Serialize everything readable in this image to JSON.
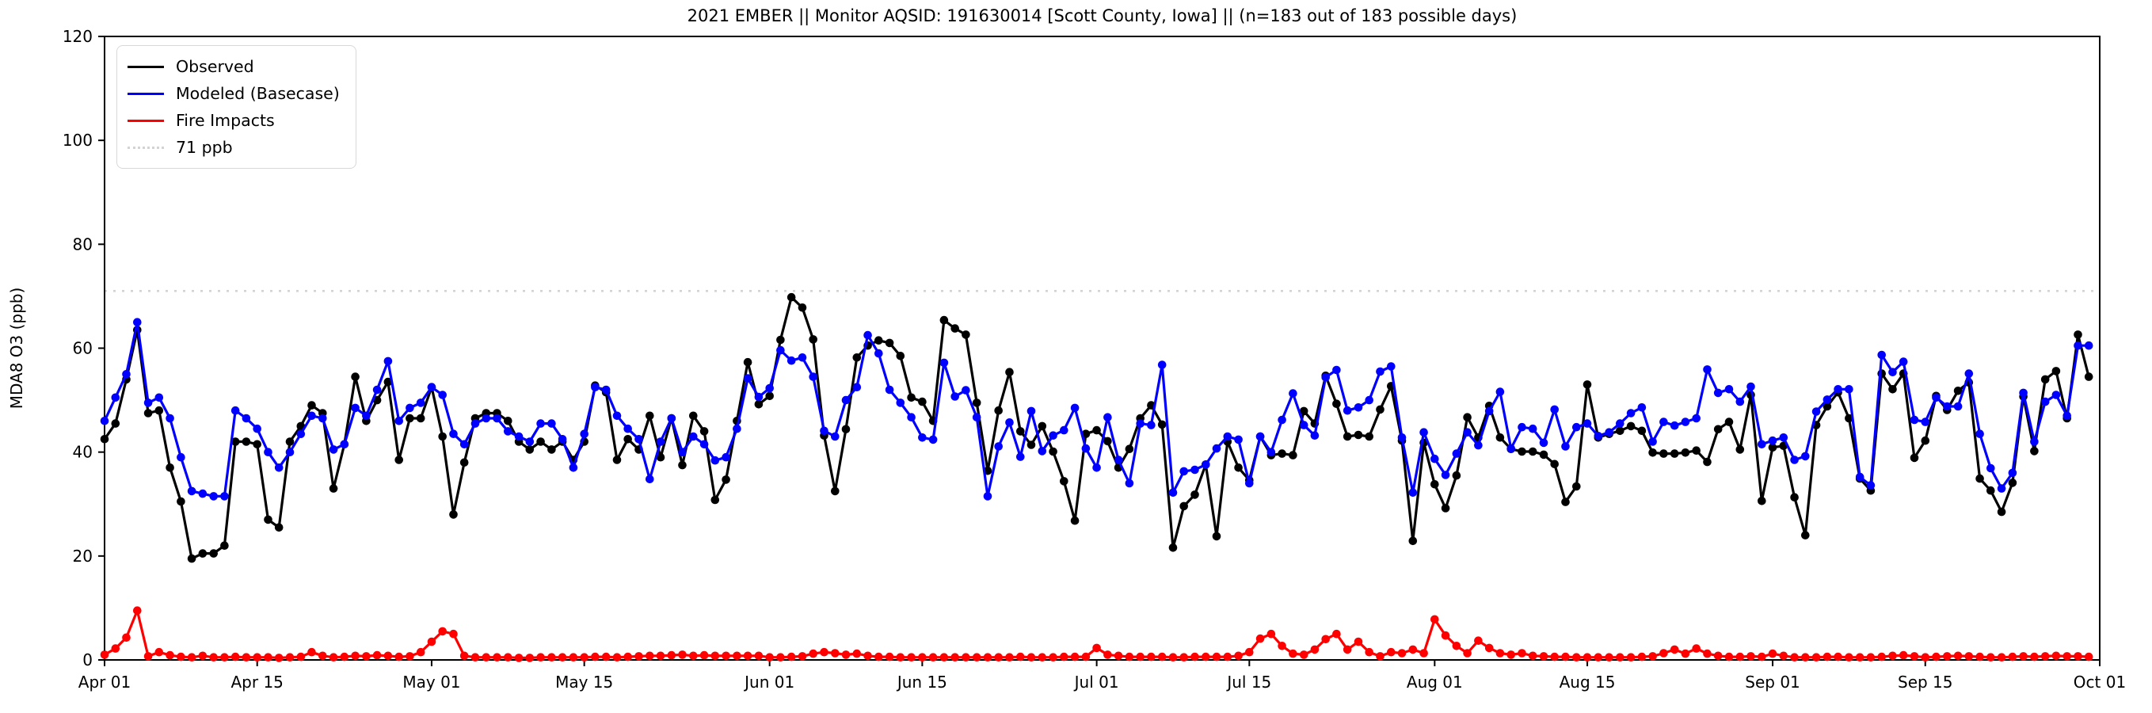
{
  "title": "2021 EMBER || Monitor AQSID: 191630014 [Scott County, Iowa] || (n=183 out of 183 possible days)",
  "chart_data": {
    "type": "line",
    "title": "2021 EMBER || Monitor AQSID: 191630014 [Scott County, Iowa] || (n=183 out of 183 possible days)",
    "xlabel": "",
    "ylabel": "MDA8 O3 (ppb)",
    "ylim": [
      0,
      120
    ],
    "y_ticks": [
      0,
      20,
      40,
      60,
      80,
      100,
      120
    ],
    "x_start_date": "2021-04-01",
    "n_days": 183,
    "x_ticks": [
      {
        "label": "Apr 01",
        "day": 0
      },
      {
        "label": "Apr 15",
        "day": 14
      },
      {
        "label": "May 01",
        "day": 30
      },
      {
        "label": "May 15",
        "day": 44
      },
      {
        "label": "Jun 01",
        "day": 61
      },
      {
        "label": "Jun 15",
        "day": 75
      },
      {
        "label": "Jul 01",
        "day": 91
      },
      {
        "label": "Jul 15",
        "day": 105
      },
      {
        "label": "Aug 01",
        "day": 122
      },
      {
        "label": "Aug 15",
        "day": 136
      },
      {
        "label": "Sep 01",
        "day": 153
      },
      {
        "label": "Sep 15",
        "day": 167
      },
      {
        "label": "Oct 01",
        "day": 183
      }
    ],
    "threshold": {
      "value": 71,
      "label": "71 ppb",
      "color": "#d3d3d3",
      "style": "dotted"
    },
    "grid": false,
    "legend_position": "top-left",
    "marker": "circle",
    "series": [
      {
        "name": "Observed",
        "color": "#000000",
        "values": [
          42.5,
          45.5,
          54,
          63.5,
          47.5,
          48,
          37,
          30.5,
          19.5,
          20.5,
          20.5,
          22,
          42,
          42,
          41.5,
          27,
          25.5,
          42,
          45,
          49,
          47.5,
          33,
          41.5,
          54.5,
          46,
          50,
          53.5,
          38.5,
          46.5,
          46.5,
          52.5,
          43,
          28,
          38,
          46.5,
          47.5,
          47.5,
          46,
          42,
          40.5,
          42,
          40.5,
          42,
          38.5,
          42,
          52.8,
          51.5,
          38.5,
          42.5,
          40.5,
          47,
          39,
          46.5,
          37.5,
          47,
          44,
          30.8,
          34.7,
          46,
          57.3,
          49.2,
          50.8,
          61.6,
          69.8,
          67.8,
          61.7,
          43.2,
          32.5,
          44.4,
          58.2,
          60.5,
          61.5,
          61,
          58.5,
          50.5,
          49.7,
          46,
          65.4,
          63.8,
          62.6,
          49.5,
          36.4,
          48,
          55.4,
          44,
          41.4,
          45,
          40.1,
          34.4,
          26.8,
          43.5,
          44.2,
          42.1,
          37,
          40.6,
          46.5,
          49,
          45.3,
          21.6,
          29.6,
          31.8,
          37.6,
          23.8,
          42,
          37,
          34.6,
          43,
          39.4,
          39.7,
          39.4,
          47.9,
          45.5,
          54.7,
          49.3,
          43,
          43.3,
          43,
          48.2,
          52.7,
          42.2,
          22.9,
          41.8,
          33.8,
          29.2,
          35.5,
          46.7,
          42.8,
          48.9,
          42.8,
          40.6,
          40.1,
          40.1,
          39.5,
          37.7,
          30.4,
          33.4,
          53,
          42.8,
          43.5,
          44.1,
          45,
          44.1,
          39.9,
          39.7,
          39.7,
          39.9,
          40.3,
          38.1,
          44.4,
          45.8,
          40.5,
          51,
          30.6,
          40.9,
          41.2,
          31.3,
          24,
          45.2,
          48.8,
          51.5,
          46.5,
          34.9,
          32.6,
          55.1,
          52.1,
          55.1,
          38.9,
          42.2,
          50.8,
          48.1,
          51.8,
          53.4,
          34.9,
          32.6,
          28.5,
          34.1,
          50.7,
          40.2,
          54,
          55.6,
          46.5,
          62.6,
          54.5
        ]
      },
      {
        "name": "Modeled (Basecase)",
        "color": "#0000ff",
        "values": [
          46,
          50.5,
          55,
          65,
          49.5,
          50.5,
          46.5,
          39,
          32.5,
          32,
          31.5,
          31.5,
          48,
          46.5,
          44.5,
          40,
          37,
          40,
          43.5,
          47,
          46.5,
          40.5,
          41.5,
          48.5,
          47,
          52,
          57.5,
          46,
          48.5,
          49.5,
          52.5,
          51,
          43.5,
          41.5,
          45.5,
          46.5,
          46.5,
          44,
          43,
          42,
          45.5,
          45.5,
          42.5,
          37,
          43.5,
          52.5,
          52,
          47,
          44.5,
          42.5,
          34.8,
          42,
          46.5,
          40,
          43,
          41.5,
          38.4,
          39,
          44.5,
          54.2,
          50.6,
          52.3,
          59.6,
          57.6,
          58.2,
          54.5,
          44.1,
          43,
          50,
          52.5,
          62.5,
          59,
          52,
          49.5,
          46.7,
          42.8,
          42.4,
          57.2,
          50.7,
          51.9,
          46.7,
          31.5,
          41.1,
          45.7,
          39.1,
          47.9,
          40.2,
          43.2,
          44.2,
          48.5,
          40.7,
          37,
          46.7,
          38.5,
          34,
          45.5,
          45.2,
          56.8,
          32.2,
          36.3,
          36.6,
          37.6,
          40.7,
          43,
          42.4,
          34,
          43,
          40,
          46.2,
          51.3,
          45.2,
          43.2,
          54.4,
          55.8,
          48,
          48.6,
          50,
          55.5,
          56.5,
          42.8,
          32.2,
          43.8,
          38.7,
          35.6,
          39.7,
          43.8,
          41.3,
          47.9,
          51.6,
          40.7,
          44.8,
          44.5,
          41.8,
          48.2,
          41.1,
          44.8,
          45.5,
          43.1,
          43.8,
          45.5,
          47.5,
          48.6,
          42,
          45.8,
          45.1,
          45.8,
          46.5,
          55.9,
          51.4,
          52.1,
          49.7,
          52.6,
          41.5,
          42.2,
          42.8,
          38.5,
          39.2,
          47.8,
          50.1,
          52.1,
          52.1,
          35.2,
          33.6,
          58.7,
          55.4,
          57.4,
          46.2,
          45.8,
          50.5,
          48.8,
          48.8,
          55.1,
          43.5,
          36.9,
          33,
          36,
          51.4,
          42,
          49.7,
          51,
          47,
          60.5,
          60.5
        ]
      },
      {
        "name": "Fire Impacts",
        "color": "#ff0000",
        "values": [
          1,
          2.2,
          4.3,
          9.5,
          0.7,
          1.5,
          0.9,
          0.6,
          0.5,
          0.8,
          0.5,
          0.5,
          0.6,
          0.5,
          0.5,
          0.5,
          0.4,
          0.5,
          0.6,
          1.5,
          0.8,
          0.5,
          0.6,
          0.8,
          0.7,
          0.9,
          0.8,
          0.6,
          0.7,
          1.5,
          3.5,
          5.5,
          5,
          0.8,
          0.5,
          0.5,
          0.5,
          0.5,
          0.4,
          0.4,
          0.5,
          0.5,
          0.5,
          0.5,
          0.5,
          0.6,
          0.6,
          0.5,
          0.6,
          0.7,
          0.8,
          0.8,
          0.9,
          1,
          0.8,
          0.9,
          0.8,
          0.8,
          0.8,
          0.8,
          0.8,
          0.5,
          0.5,
          0.6,
          0.7,
          1.2,
          1.5,
          1.3,
          1,
          1.2,
          0.8,
          0.6,
          0.6,
          0.5,
          0.5,
          0.5,
          0.5,
          0.5,
          0.5,
          0.5,
          0.5,
          0.5,
          0.5,
          0.5,
          0.6,
          0.5,
          0.5,
          0.5,
          0.6,
          0.6,
          0.6,
          2.3,
          1,
          0.8,
          0.6,
          0.6,
          0.6,
          0.6,
          0.5,
          0.5,
          0.6,
          0.6,
          0.6,
          0.6,
          0.8,
          1.5,
          4.1,
          5,
          2.7,
          1.2,
          1,
          2,
          4,
          5,
          2,
          3.5,
          1.5,
          0.7,
          1.5,
          1.3,
          2,
          1.3,
          7.8,
          4.7,
          2.7,
          1.3,
          3.7,
          2.3,
          1.3,
          1,
          1.3,
          0.8,
          0.7,
          0.6,
          0.6,
          0.5,
          0.5,
          0.5,
          0.5,
          0.5,
          0.5,
          0.6,
          0.7,
          1.3,
          2,
          1.2,
          2.2,
          1.2,
          0.8,
          0.6,
          0.6,
          0.7,
          0.6,
          1.2,
          0.8,
          0.5,
          0.5,
          0.5,
          0.6,
          0.6,
          0.5,
          0.5,
          0.5,
          0.6,
          0.8,
          0.9,
          0.7,
          0.5,
          0.6,
          0.7,
          0.8,
          0.7,
          0.6,
          0.5,
          0.5,
          0.6,
          0.7,
          0.6,
          0.7,
          0.8,
          0.7,
          0.7,
          0.6
        ]
      }
    ]
  }
}
